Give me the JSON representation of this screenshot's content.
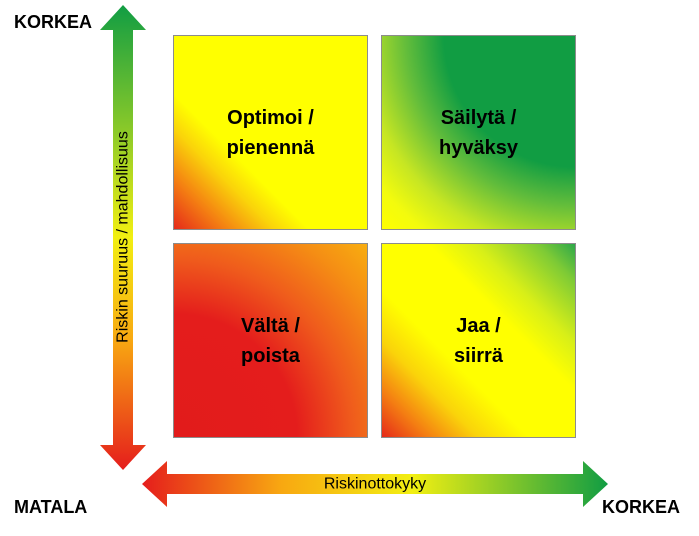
{
  "axes": {
    "y_top_label": "KORKEA",
    "y_bottom_label": "MATALA",
    "x_right_label": "KORKEA",
    "y_axis_title": "Riskin suuruus / mahdollisuus",
    "x_axis_title": "Riskinottokyky"
  },
  "quadrants": {
    "top_left": "Optimoi /\npienennä",
    "top_right": "Säilytä /\nhyväksy",
    "bottom_left": "Vältä /\npoista",
    "bottom_right": "Jaa /\nsiirrä"
  },
  "colors": {
    "green": "#119d43",
    "yellow": "#ffff00",
    "orange": "#f58e14",
    "red": "#e21b1b"
  }
}
